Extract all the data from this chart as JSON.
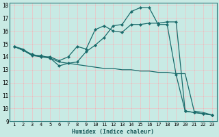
{
  "xlabel": "Humidex (Indice chaleur)",
  "background_color": "#c8eae4",
  "grid_color_major": "#ffffff",
  "grid_color_minor": "#d8b8b8",
  "line_color": "#1a6b6b",
  "xlim": [
    0.5,
    23.5
  ],
  "ylim": [
    9,
    18.2
  ],
  "xticks": [
    1,
    2,
    3,
    4,
    5,
    6,
    7,
    8,
    9,
    10,
    11,
    12,
    13,
    14,
    15,
    16,
    17,
    18,
    19,
    20,
    21,
    22,
    23
  ],
  "yticks": [
    9,
    10,
    11,
    12,
    13,
    14,
    15,
    16,
    17,
    18
  ],
  "line1_x": [
    1,
    2,
    3,
    4,
    5,
    6,
    7,
    8,
    9,
    10,
    11,
    12,
    13,
    14,
    15,
    16,
    17,
    18,
    19,
    20,
    21,
    22,
    23
  ],
  "line1_y": [
    14.8,
    14.5,
    14.1,
    14.1,
    13.9,
    13.3,
    13.5,
    13.6,
    14.4,
    14.9,
    15.5,
    16.4,
    16.5,
    17.5,
    17.8,
    17.8,
    16.5,
    16.5,
    12.6,
    9.8,
    9.7,
    9.6,
    9.5
  ],
  "line2_x": [
    1,
    2,
    3,
    4,
    5,
    6,
    7,
    8,
    9,
    10,
    11,
    12,
    13,
    14,
    15,
    16,
    17,
    18,
    19,
    20,
    21,
    22,
    23
  ],
  "line2_y": [
    14.8,
    14.5,
    14.2,
    14.0,
    14.0,
    13.7,
    14.0,
    14.8,
    14.6,
    16.1,
    16.4,
    16.0,
    15.9,
    16.5,
    16.5,
    16.6,
    16.6,
    16.7,
    16.7,
    9.8,
    9.7,
    9.6,
    9.5
  ],
  "line3_x": [
    1,
    2,
    3,
    4,
    5,
    6,
    7,
    8,
    9,
    10,
    11,
    12,
    13,
    14,
    15,
    16,
    17,
    18,
    19,
    20,
    21,
    22,
    23
  ],
  "line3_y": [
    14.8,
    14.6,
    14.1,
    14.0,
    13.9,
    13.6,
    13.5,
    13.4,
    13.3,
    13.2,
    13.1,
    13.1,
    13.0,
    13.0,
    12.9,
    12.9,
    12.8,
    12.8,
    12.7,
    12.7,
    9.8,
    9.7,
    9.5
  ]
}
